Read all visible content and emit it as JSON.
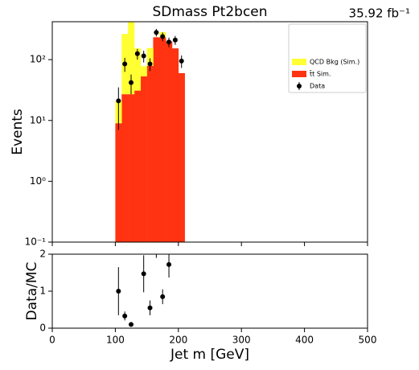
{
  "chart_data": [
    {
      "type": "histogram",
      "title": "SDmass  Pt2bcen",
      "annotation": "35.92 fb⁻¹",
      "ylabel": "Events",
      "bins": [
        100,
        110,
        120,
        130,
        140,
        150,
        160,
        170,
        180,
        190,
        200,
        210
      ],
      "series": [
        {
          "name": "t̄t Sim.",
          "color": "#ff3311",
          "values": [
            9,
            27,
            27,
            31,
            53,
            79,
            233,
            233,
            200,
            153,
            60
          ]
        },
        {
          "name": "QCD Bkg (Sim.)",
          "color": "#ffff33",
          "values": [
            12,
            237,
            393,
            122,
            25,
            76,
            0,
            49,
            0,
            0,
            0
          ]
        }
      ],
      "data": {
        "name": "Data",
        "color": "#000000",
        "x": [
          105,
          115,
          125,
          135,
          145,
          155,
          165,
          175,
          185,
          195,
          205
        ],
        "values": [
          21,
          85,
          42,
          125,
          115,
          85,
          280,
          240,
          195,
          210,
          95
        ],
        "errors": [
          14,
          22,
          15,
          25,
          25,
          20,
          40,
          40,
          35,
          35,
          22
        ]
      },
      "log_scale": true,
      "legend": "upper right",
      "xlim": [
        0,
        500
      ],
      "xticks": [
        0,
        100,
        200,
        300,
        400,
        500
      ],
      "ylim": [
        0.1,
        420
      ],
      "yticks": [
        {
          "value": 0.1,
          "label": "10⁻¹"
        },
        {
          "value": 1,
          "label": "10⁰"
        },
        {
          "value": 10,
          "label": "10¹"
        },
        {
          "value": 100,
          "label": "10²"
        }
      ]
    },
    {
      "type": "scatter",
      "ylabel": "Data/MC",
      "xlabel": "Jet m [GeV]",
      "color": "#000000",
      "x": [
        105,
        115,
        125,
        145,
        155,
        165,
        175,
        185
      ],
      "values": [
        1.0,
        0.33,
        0.1,
        1.47,
        0.55,
        2.2,
        0.85,
        1.72
      ],
      "errors": [
        0.65,
        0.12,
        0.05,
        0.5,
        0.2,
        0.3,
        0.2,
        0.35
      ],
      "xlim": [
        0,
        500
      ],
      "xticks": [
        0,
        100,
        200,
        300,
        400,
        500
      ],
      "ylim": [
        0,
        2
      ],
      "yticks": [
        0,
        1,
        2
      ]
    }
  ]
}
